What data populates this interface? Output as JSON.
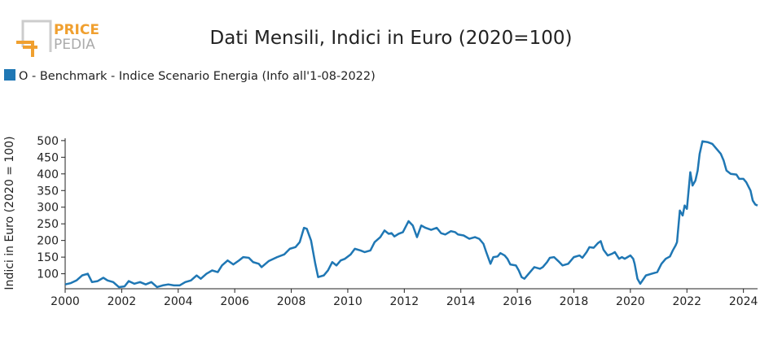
{
  "logo": {
    "line1": "PRICE",
    "line2": "PEDIA"
  },
  "chart_data": {
    "type": "line",
    "title": "Dati Mensili, Indici in Euro (2020=100)",
    "ylabel": "Indici in Euro (2020 = 100)",
    "series": [
      {
        "name": "O - Benchmark - Indice Scenario Energia (Info all'1-08-2022)",
        "color": "#1f77b4",
        "x": [
          2000.0,
          2000.2,
          2000.4,
          2000.6,
          2000.8,
          2000.95,
          2001.15,
          2001.35,
          2001.5,
          2001.7,
          2001.9,
          2002.1,
          2002.25,
          2002.45,
          2002.65,
          2002.85,
          2003.05,
          2003.25,
          2003.45,
          2003.65,
          2003.85,
          2004.05,
          2004.25,
          2004.45,
          2004.65,
          2004.8,
          2005.0,
          2005.2,
          2005.4,
          2005.55,
          2005.75,
          2005.95,
          2006.15,
          2006.3,
          2006.5,
          2006.65,
          2006.85,
          2006.95,
          2007.2,
          2007.5,
          2007.75,
          2007.95,
          2008.15,
          2008.3,
          2008.45,
          2008.55,
          2008.7,
          2008.85,
          2008.95,
          2009.15,
          2009.3,
          2009.45,
          2009.6,
          2009.75,
          2009.9,
          2010.1,
          2010.25,
          2010.45,
          2010.6,
          2010.8,
          2010.95,
          2011.15,
          2011.3,
          2011.45,
          2011.55,
          2011.65,
          2011.8,
          2011.95,
          2012.15,
          2012.3,
          2012.45,
          2012.6,
          2012.75,
          2012.95,
          2013.15,
          2013.3,
          2013.45,
          2013.65,
          2013.8,
          2013.9,
          2014.1,
          2014.3,
          2014.5,
          2014.65,
          2014.8,
          2014.9,
          2015.05,
          2015.15,
          2015.3,
          2015.4,
          2015.55,
          2015.65,
          2015.75,
          2015.95,
          2016.05,
          2016.15,
          2016.25,
          2016.45,
          2016.6,
          2016.8,
          2016.9,
          2017.05,
          2017.15,
          2017.3,
          2017.45,
          2017.6,
          2017.8,
          2018.0,
          2018.2,
          2018.3,
          2018.45,
          2018.55,
          2018.7,
          2018.85,
          2018.95,
          2019.05,
          2019.2,
          2019.35,
          2019.45,
          2019.6,
          2019.7,
          2019.8,
          2019.9,
          2020.0,
          2020.1,
          2020.15,
          2020.25,
          2020.35,
          2020.55,
          2020.75,
          2020.95,
          2021.1,
          2021.25,
          2021.4,
          2021.5,
          2021.6,
          2021.65,
          2021.75,
          2021.85,
          2021.92,
          2022.0,
          2022.12,
          2022.2,
          2022.3,
          2022.38,
          2022.45,
          2022.55,
          2022.75,
          2022.9,
          2023.05,
          2023.2,
          2023.3,
          2023.4,
          2023.55,
          2023.75,
          2023.85,
          2024.0,
          2024.1,
          2024.25,
          2024.33,
          2024.42,
          2024.5
        ],
        "values": [
          68,
          72,
          80,
          95,
          100,
          75,
          78,
          88,
          80,
          75,
          60,
          62,
          78,
          70,
          75,
          68,
          75,
          60,
          65,
          68,
          65,
          65,
          75,
          80,
          95,
          85,
          100,
          110,
          105,
          125,
          140,
          128,
          140,
          150,
          148,
          135,
          130,
          120,
          138,
          150,
          158,
          175,
          180,
          195,
          238,
          235,
          200,
          130,
          90,
          95,
          110,
          135,
          125,
          140,
          145,
          158,
          175,
          170,
          165,
          170,
          195,
          210,
          230,
          220,
          222,
          212,
          220,
          225,
          258,
          245,
          210,
          245,
          238,
          232,
          238,
          222,
          218,
          228,
          225,
          218,
          215,
          205,
          210,
          205,
          190,
          165,
          130,
          150,
          152,
          162,
          155,
          145,
          128,
          125,
          110,
          90,
          85,
          105,
          120,
          115,
          120,
          135,
          148,
          150,
          138,
          125,
          130,
          150,
          155,
          148,
          165,
          180,
          178,
          192,
          198,
          172,
          155,
          160,
          165,
          145,
          150,
          145,
          150,
          155,
          145,
          130,
          85,
          70,
          95,
          100,
          105,
          130,
          145,
          152,
          170,
          185,
          195,
          290,
          275,
          305,
          295,
          405,
          365,
          380,
          410,
          460,
          498,
          495,
          490,
          475,
          460,
          440,
          410,
          400,
          398,
          385,
          385,
          375,
          350,
          320,
          308,
          305
        ]
      }
    ],
    "xlim": [
      2000,
      2024.5
    ],
    "xticks": [
      2000,
      2002,
      2004,
      2006,
      2008,
      2010,
      2012,
      2014,
      2016,
      2018,
      2020,
      2022,
      2024
    ],
    "ylim": [
      55,
      507
    ],
    "yticks": [
      100,
      150,
      200,
      250,
      300,
      350,
      400,
      450,
      500
    ],
    "legend": "top-left",
    "grid": false
  }
}
